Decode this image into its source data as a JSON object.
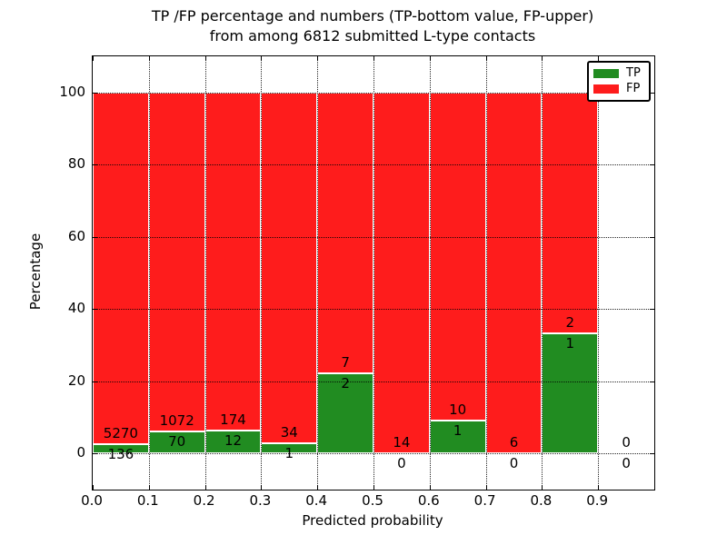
{
  "title": {
    "line1": "TP /FP percentage and numbers (TP-bottom value, FP-upper)",
    "line2": "from among 6812 submitted L-type contacts"
  },
  "axes": {
    "xlabel": "Predicted probability",
    "ylabel": "Percentage",
    "xtick_labels": [
      "0.0",
      "0.1",
      "0.2",
      "0.3",
      "0.4",
      "0.5",
      "0.6",
      "0.7",
      "0.8",
      "0.9"
    ],
    "xticks": [
      0.0,
      0.1,
      0.2,
      0.3,
      0.4,
      0.5,
      0.6,
      0.7,
      0.8,
      0.9
    ],
    "ytick_labels": [
      "0",
      "20",
      "40",
      "60",
      "80",
      "100"
    ],
    "yticks": [
      0,
      20,
      40,
      60,
      80,
      100
    ],
    "xlim": [
      0.0,
      1.0
    ],
    "ylim": [
      -10,
      110
    ],
    "grid": "dotted, drawn on top of bars"
  },
  "legend": {
    "items": [
      {
        "label": "TP",
        "color": "#218c21"
      },
      {
        "label": "FP",
        "color": "#fe1c1c"
      }
    ],
    "position": "upper right"
  },
  "colors": {
    "tp_green": "#218c21",
    "fp_red": "#fe1c1c",
    "bar_edge": "#ffffff",
    "text": "#000000"
  },
  "chart_data": {
    "type": "bar",
    "stacked": true,
    "note": "Each bar normalized to 100%; TP percentage at bottom (green), FP on top (red). Counts labeled: FP above boundary, TP below boundary.",
    "total_contacts": 6812,
    "bin_width": 0.1,
    "bins": [
      {
        "x0": 0.0,
        "x1": 0.1,
        "tp": 136,
        "fp": 5270
      },
      {
        "x0": 0.1,
        "x1": 0.2,
        "tp": 70,
        "fp": 1072
      },
      {
        "x0": 0.2,
        "x1": 0.3,
        "tp": 12,
        "fp": 174
      },
      {
        "x0": 0.3,
        "x1": 0.4,
        "tp": 1,
        "fp": 34
      },
      {
        "x0": 0.4,
        "x1": 0.5,
        "tp": 2,
        "fp": 7
      },
      {
        "x0": 0.5,
        "x1": 0.6,
        "tp": 0,
        "fp": 14
      },
      {
        "x0": 0.6,
        "x1": 0.7,
        "tp": 1,
        "fp": 10
      },
      {
        "x0": 0.7,
        "x1": 0.8,
        "tp": 0,
        "fp": 6
      },
      {
        "x0": 0.8,
        "x1": 0.9,
        "tp": 1,
        "fp": 2
      },
      {
        "x0": 0.9,
        "x1": 1.0,
        "tp": 0,
        "fp": 0
      }
    ],
    "series": [
      {
        "name": "TP",
        "color": "#218c21",
        "counts": [
          136,
          70,
          12,
          1,
          2,
          0,
          1,
          0,
          1,
          0
        ]
      },
      {
        "name": "FP",
        "color": "#fe1c1c",
        "counts": [
          5270,
          1072,
          174,
          34,
          7,
          14,
          10,
          6,
          2,
          0
        ]
      }
    ]
  }
}
